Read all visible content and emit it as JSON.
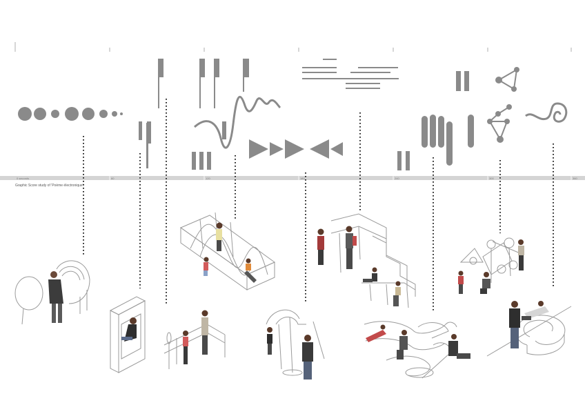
{
  "caption": "Graphic Score study of 'Poème électronique'",
  "timeline": {
    "start_label": "0 seconds",
    "tick_labels": [
      "60",
      "120",
      "180",
      "240",
      "300",
      "360",
      "420"
    ]
  },
  "colors": {
    "glyph": "#8a8a8a",
    "band": "#d4d4d4",
    "leader": "#222222",
    "sketch": "#9a9a9a"
  },
  "icons": [
    "dot-sequence",
    "vertical-bars",
    "flag-strokes",
    "sine-scribble",
    "arrow-triangles",
    "horizontal-dashes",
    "rounded-bars",
    "triangle-nodes",
    "spiral"
  ]
}
